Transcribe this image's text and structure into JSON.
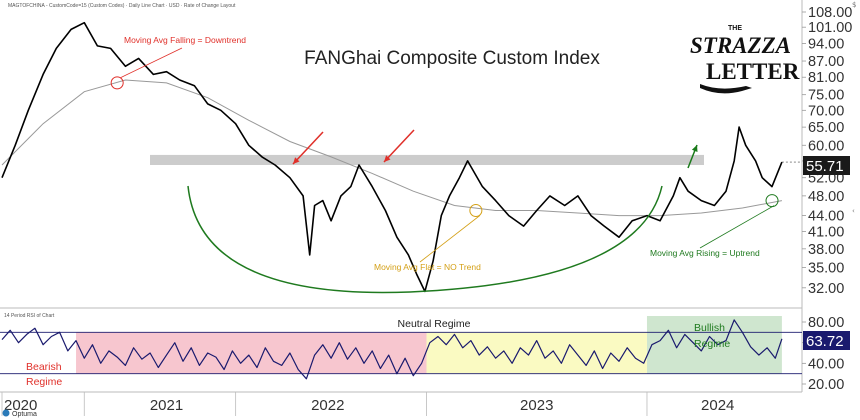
{
  "header": {
    "info_line": "MAGTOFCHINA - CustomCode=15 (Custom Codes) · Daily Line Chart · USD · Rate of Change Layout",
    "rsi_info": "14 Period RSI of Chart"
  },
  "logo": {
    "the": "THE",
    "strazza": "STRAZZA",
    "letter": "LETTER"
  },
  "footer": {
    "brand": "Optuma"
  },
  "colors": {
    "price_line": "#000000",
    "moving_avg": "#999999",
    "resistance_band": "#cccccc",
    "arrow_red": "#e0302a",
    "arrow_green": "#1a7a1a",
    "curve_green": "#1f7a1f",
    "flat_note": "#d4a017",
    "rsi_line": "#1a1a6e",
    "bearish_zone": "#f7c6cf",
    "neutral_zone": "#fafac2",
    "bullish_zone": "#cfe6cf",
    "price_tag_bg": "#1a1a1a",
    "rsi_tag_bg": "#1a1a6e"
  },
  "chart_data": [
    {
      "type": "line",
      "title": "FANGhai Composite Custom Index",
      "xlabel": "",
      "ylabel": "",
      "yscale": "log",
      "ylim": [
        31,
        108
      ],
      "xlim": [
        2020.0,
        2024.85
      ],
      "x_ticks": [
        "2020",
        "2021",
        "2022",
        "2023",
        "2024"
      ],
      "y_ticks": [
        "32.00",
        "35.00",
        "38.00",
        "41.00",
        "44.00",
        "48.00",
        "52.00",
        "56.00",
        "60.00",
        "65.00",
        "70.00",
        "75.00",
        "81.00",
        "87.00",
        "94.00",
        "101.00",
        "108.00"
      ],
      "last_value_label": "55.71",
      "grid": false,
      "series": [
        {
          "points": [
            [
              2020.0,
              52
            ],
            [
              2020.08,
              60
            ],
            [
              2020.16,
              70
            ],
            [
              2020.25,
              82
            ],
            [
              2020.33,
              92
            ],
            [
              2020.42,
              100
            ],
            [
              2020.5,
              103
            ],
            [
              2020.58,
              93
            ],
            [
              2020.66,
              92
            ],
            [
              2020.75,
              85
            ],
            [
              2020.83,
              88
            ],
            [
              2020.92,
              82
            ],
            [
              2021.0,
              83
            ],
            [
              2021.08,
              80
            ],
            [
              2021.17,
              78
            ],
            [
              2021.25,
              72
            ],
            [
              2021.33,
              70
            ],
            [
              2021.42,
              66
            ],
            [
              2021.5,
              60
            ],
            [
              2021.58,
              57
            ],
            [
              2021.66,
              55
            ],
            [
              2021.75,
              52
            ],
            [
              2021.83,
              48
            ],
            [
              2021.87,
              37
            ],
            [
              2021.9,
              46
            ],
            [
              2021.95,
              47
            ],
            [
              2022.0,
              43
            ],
            [
              2022.06,
              48
            ],
            [
              2022.12,
              50
            ],
            [
              2022.17,
              55
            ],
            [
              2022.25,
              50
            ],
            [
              2022.33,
              45
            ],
            [
              2022.4,
              40
            ],
            [
              2022.47,
              37
            ],
            [
              2022.52,
              34
            ],
            [
              2022.57,
              31.5
            ],
            [
              2022.62,
              36
            ],
            [
              2022.67,
              44
            ],
            [
              2022.72,
              48
            ],
            [
              2022.78,
              52
            ],
            [
              2022.83,
              56
            ],
            [
              2022.92,
              50
            ],
            [
              2023.0,
              47
            ],
            [
              2023.08,
              44
            ],
            [
              2023.17,
              42
            ],
            [
              2023.25,
              45
            ],
            [
              2023.33,
              48
            ],
            [
              2023.42,
              46
            ],
            [
              2023.5,
              48
            ],
            [
              2023.58,
              44
            ],
            [
              2023.66,
              42
            ],
            [
              2023.75,
              40
            ],
            [
              2023.83,
              43
            ],
            [
              2023.92,
              44
            ],
            [
              2024.0,
              43
            ],
            [
              2024.08,
              48
            ],
            [
              2024.12,
              52
            ],
            [
              2024.17,
              49
            ],
            [
              2024.25,
              47
            ],
            [
              2024.33,
              46
            ],
            [
              2024.4,
              49
            ],
            [
              2024.45,
              56
            ],
            [
              2024.48,
              65
            ],
            [
              2024.52,
              60
            ],
            [
              2024.58,
              56
            ],
            [
              2024.62,
              52
            ],
            [
              2024.68,
              50
            ],
            [
              2024.74,
              55.71
            ]
          ]
        },
        {
          "points": [
            [
              2020.0,
              55
            ],
            [
              2020.25,
              66
            ],
            [
              2020.5,
              76
            ],
            [
              2020.75,
              80
            ],
            [
              2021.0,
              79
            ],
            [
              2021.25,
              74
            ],
            [
              2021.5,
              67
            ],
            [
              2021.75,
              61
            ],
            [
              2022.0,
              57
            ],
            [
              2022.25,
              53
            ],
            [
              2022.5,
              49
            ],
            [
              2022.75,
              46
            ],
            [
              2023.0,
              45
            ],
            [
              2023.25,
              45
            ],
            [
              2023.5,
              44.5
            ],
            [
              2023.75,
              44
            ],
            [
              2024.0,
              44
            ],
            [
              2024.25,
              44.5
            ],
            [
              2024.5,
              45.5
            ],
            [
              2024.74,
              47
            ]
          ]
        }
      ],
      "annotations": [
        {
          "text": "Moving Avg Falling = Downtrend",
          "x": 2020.7,
          "y": 79
        },
        {
          "text": "Moving Avg Flat = NO Trend",
          "x": 2022.88,
          "y": 45
        },
        {
          "text": "Moving Avg Rising = Uptrend",
          "x": 2024.68,
          "y": 47
        },
        {
          "resistance_band": [
            55,
            57.5
          ]
        }
      ]
    },
    {
      "type": "line",
      "title": "",
      "ylim": [
        20,
        90
      ],
      "y_ticks": [
        "20.00",
        "40.00",
        "60.00",
        "80.00"
      ],
      "levels": [
        70,
        30
      ],
      "last_value_label": "63.72",
      "regimes": [
        {
          "name": "Bearish Regime",
          "label_lines": [
            "Bearish",
            "Regime"
          ],
          "x": [
            2020.45,
            2022.58
          ],
          "band": [
            30,
            70
          ]
        },
        {
          "name": "Neutral Regime",
          "label_lines": [
            "Neutral Regime"
          ],
          "x": [
            2022.58,
            2023.92
          ],
          "band": [
            30,
            70
          ]
        },
        {
          "name": "Bullish Regime",
          "label_lines": [
            "Bullish",
            "Regime"
          ],
          "x": [
            2023.92,
            2024.74
          ],
          "band": [
            30,
            90
          ]
        }
      ],
      "series": [
        {
          "points": [
            [
              2020.0,
              63
            ],
            [
              2020.05,
              72
            ],
            [
              2020.1,
              60
            ],
            [
              2020.15,
              68
            ],
            [
              2020.2,
              74
            ],
            [
              2020.25,
              58
            ],
            [
              2020.3,
              66
            ],
            [
              2020.35,
              70
            ],
            [
              2020.4,
              52
            ],
            [
              2020.45,
              62
            ],
            [
              2020.5,
              45
            ],
            [
              2020.55,
              58
            ],
            [
              2020.6,
              40
            ],
            [
              2020.65,
              52
            ],
            [
              2020.7,
              46
            ],
            [
              2020.75,
              38
            ],
            [
              2020.8,
              55
            ],
            [
              2020.85,
              44
            ],
            [
              2020.9,
              50
            ],
            [
              2020.95,
              36
            ],
            [
              2021.0,
              48
            ],
            [
              2021.05,
              60
            ],
            [
              2021.1,
              42
            ],
            [
              2021.15,
              55
            ],
            [
              2021.2,
              38
            ],
            [
              2021.25,
              50
            ],
            [
              2021.3,
              46
            ],
            [
              2021.35,
              34
            ],
            [
              2021.4,
              52
            ],
            [
              2021.45,
              40
            ],
            [
              2021.5,
              48
            ],
            [
              2021.55,
              36
            ],
            [
              2021.6,
              55
            ],
            [
              2021.65,
              42
            ],
            [
              2021.7,
              38
            ],
            [
              2021.75,
              50
            ],
            [
              2021.8,
              34
            ],
            [
              2021.85,
              25
            ],
            [
              2021.9,
              48
            ],
            [
              2021.95,
              58
            ],
            [
              2022.0,
              45
            ],
            [
              2022.05,
              60
            ],
            [
              2022.1,
              44
            ],
            [
              2022.15,
              55
            ],
            [
              2022.2,
              40
            ],
            [
              2022.25,
              52
            ],
            [
              2022.3,
              35
            ],
            [
              2022.35,
              48
            ],
            [
              2022.4,
              30
            ],
            [
              2022.45,
              45
            ],
            [
              2022.5,
              28
            ],
            [
              2022.55,
              40
            ],
            [
              2022.6,
              60
            ],
            [
              2022.65,
              66
            ],
            [
              2022.7,
              58
            ],
            [
              2022.75,
              68
            ],
            [
              2022.8,
              55
            ],
            [
              2022.85,
              62
            ],
            [
              2022.9,
              48
            ],
            [
              2022.95,
              56
            ],
            [
              2023.0,
              45
            ],
            [
              2023.05,
              52
            ],
            [
              2023.1,
              40
            ],
            [
              2023.15,
              55
            ],
            [
              2023.2,
              48
            ],
            [
              2023.25,
              62
            ],
            [
              2023.3,
              45
            ],
            [
              2023.35,
              52
            ],
            [
              2023.4,
              40
            ],
            [
              2023.45,
              58
            ],
            [
              2023.5,
              48
            ],
            [
              2023.55,
              38
            ],
            [
              2023.6,
              52
            ],
            [
              2023.65,
              35
            ],
            [
              2023.7,
              50
            ],
            [
              2023.75,
              42
            ],
            [
              2023.8,
              55
            ],
            [
              2023.85,
              45
            ],
            [
              2023.9,
              40
            ],
            [
              2023.95,
              58
            ],
            [
              2024.0,
              62
            ],
            [
              2024.05,
              72
            ],
            [
              2024.1,
              55
            ],
            [
              2024.15,
              68
            ],
            [
              2024.2,
              60
            ],
            [
              2024.25,
              52
            ],
            [
              2024.3,
              66
            ],
            [
              2024.35,
              58
            ],
            [
              2024.4,
              62
            ],
            [
              2024.45,
              82
            ],
            [
              2024.5,
              70
            ],
            [
              2024.55,
              56
            ],
            [
              2024.6,
              48
            ],
            [
              2024.65,
              55
            ],
            [
              2024.7,
              45
            ],
            [
              2024.74,
              63.72
            ]
          ]
        }
      ]
    }
  ]
}
